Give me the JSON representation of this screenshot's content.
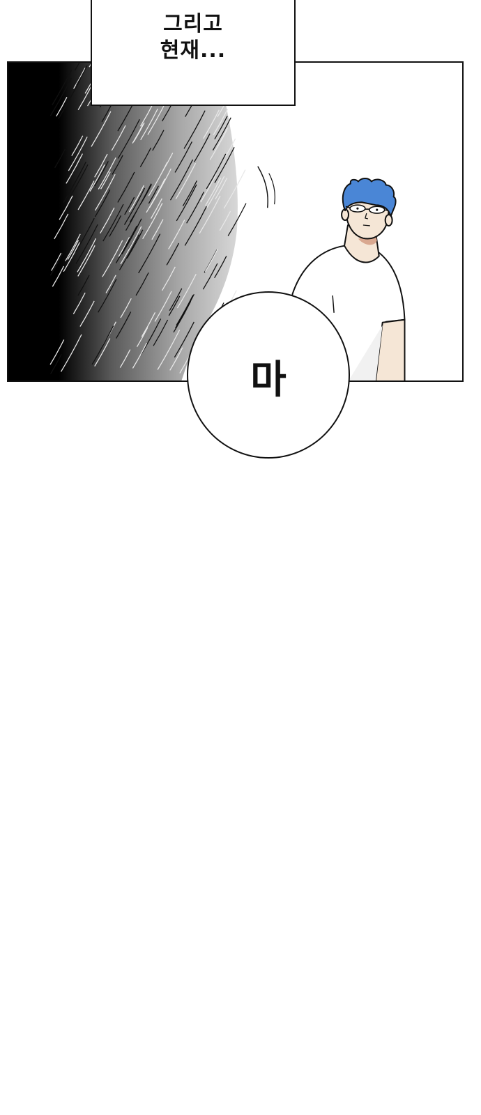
{
  "caption": {
    "line1": "그리고",
    "line2": "현재..."
  },
  "speech_bubble": {
    "text": "마"
  },
  "colors": {
    "hair": "#4a86d6",
    "skin": "#f5e6d6",
    "shirt": "#ffffff",
    "ink": "#111111",
    "fur_dark": "#000000",
    "fur_mid": "#9a9a9a"
  }
}
